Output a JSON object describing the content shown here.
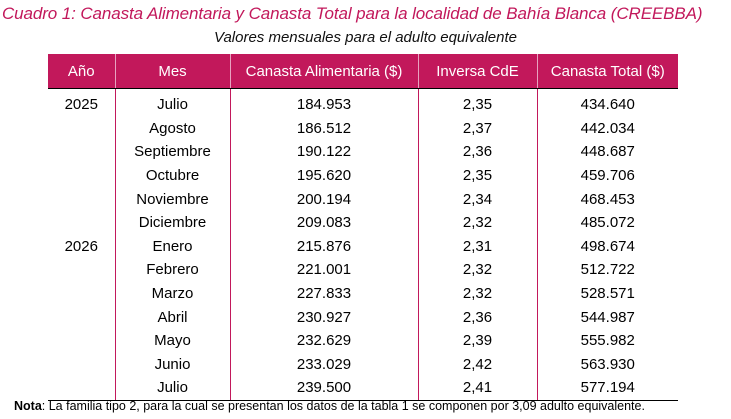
{
  "title": "Cuadro 1: Canasta Alimentaria y Canasta Total para la localidad de Bahía Blanca (CREEBBA)",
  "subtitle": "Valores mensuales para el adulto equivalente",
  "columns": [
    "Año",
    "Mes",
    "Canasta Alimentaria ($)",
    "Inversa CdE",
    "Canasta Total ($)"
  ],
  "rows": [
    {
      "year": "2025",
      "month": "Julio",
      "ca": "184.953",
      "inv": "2,35",
      "ct": "434.640"
    },
    {
      "year": "",
      "month": "Agosto",
      "ca": "186.512",
      "inv": "2,37",
      "ct": "442.034"
    },
    {
      "year": "",
      "month": "Septiembre",
      "ca": "190.122",
      "inv": "2,36",
      "ct": "448.687"
    },
    {
      "year": "",
      "month": "Octubre",
      "ca": "195.620",
      "inv": "2,35",
      "ct": "459.706"
    },
    {
      "year": "",
      "month": "Noviembre",
      "ca": "200.194",
      "inv": "2,34",
      "ct": "468.453"
    },
    {
      "year": "",
      "month": "Diciembre",
      "ca": "209.083",
      "inv": "2,32",
      "ct": "485.072"
    },
    {
      "year": "2026",
      "month": "Enero",
      "ca": "215.876",
      "inv": "2,31",
      "ct": "498.674"
    },
    {
      "year": "",
      "month": "Febrero",
      "ca": "221.001",
      "inv": "2,32",
      "ct": "512.722"
    },
    {
      "year": "",
      "month": "Marzo",
      "ca": "227.833",
      "inv": "2,32",
      "ct": "528.571"
    },
    {
      "year": "",
      "month": "Abril",
      "ca": "230.927",
      "inv": "2,36",
      "ct": "544.987"
    },
    {
      "year": "",
      "month": "Mayo",
      "ca": "232.629",
      "inv": "2,39",
      "ct": "555.982"
    },
    {
      "year": "",
      "month": "Junio",
      "ca": "233.029",
      "inv": "2,42",
      "ct": "563.930"
    },
    {
      "year": "",
      "month": "Julio",
      "ca": "239.500",
      "inv": "2,41",
      "ct": "577.194"
    }
  ],
  "note": {
    "label": "Nota",
    "text": ": La familia tipo 2, para la cual se presentan los datos de la tabla 1 se componen por 3,09 adulto equivalente."
  },
  "colors": {
    "accent": "#c2185b",
    "header_text": "#ffffff"
  }
}
